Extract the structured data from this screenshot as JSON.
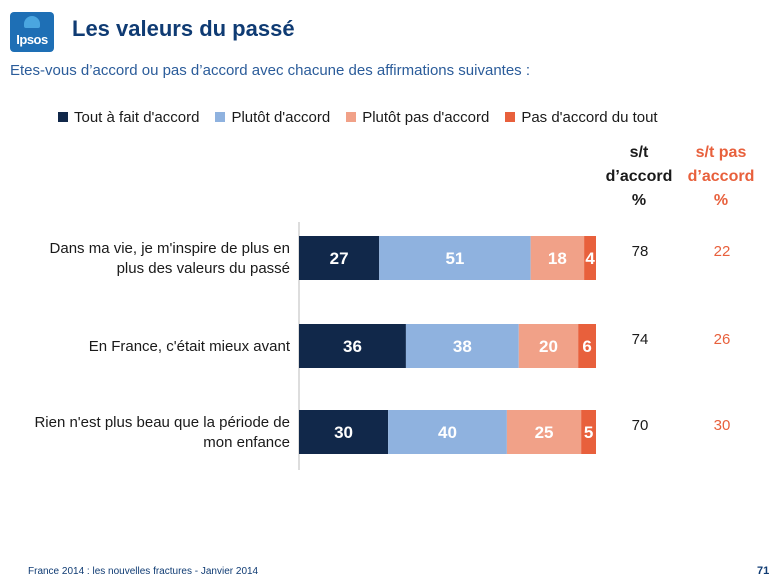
{
  "header": {
    "logo_text": "Ipsos",
    "title": "Les valeurs du passé",
    "subtitle": "Etes-vous d’accord ou pas d’accord avec chacune des affirmations suivantes :"
  },
  "columns": {
    "agree_lines": [
      "s/t",
      "d’accord",
      "%"
    ],
    "disagree_lines": [
      "s/t pas",
      "d’accord",
      "%"
    ]
  },
  "colors": {
    "tout_a_fait": "#11284a",
    "plutot": "#8fb2df",
    "plutot_pas": "#f1a188",
    "pas_du_tout": "#e8603c",
    "disagree_total": "#e8603c",
    "brand": "#0f3b73"
  },
  "chart_data": {
    "type": "bar",
    "orientation": "horizontal",
    "stacked": true,
    "legend_position": "top",
    "categories": [
      [
        "Dans ma vie, je m'inspire de plus en",
        "plus des valeurs du passé"
      ],
      [
        "En France, c'était mieux avant"
      ],
      [
        "Rien n'est plus beau que la période de",
        "mon enfance"
      ]
    ],
    "series": [
      {
        "name": "Tout à fait d'accord",
        "values": [
          27,
          36,
          30
        ]
      },
      {
        "name": "Plutôt d'accord",
        "values": [
          51,
          38,
          40
        ]
      },
      {
        "name": "Plutôt pas d'accord",
        "values": [
          18,
          20,
          25
        ]
      },
      {
        "name": "Pas d'accord du tout",
        "values": [
          4,
          6,
          5
        ]
      }
    ],
    "totals_agree": [
      78,
      74,
      70
    ],
    "totals_disagree": [
      22,
      26,
      30
    ],
    "xlim": [
      0,
      100
    ]
  },
  "footer": {
    "source": "France 2014 : les nouvelles fractures - Janvier 2014",
    "page_number": "71"
  }
}
